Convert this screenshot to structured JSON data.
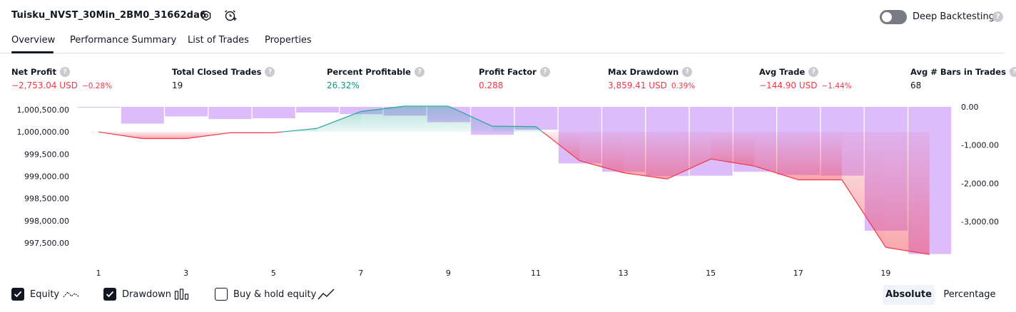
{
  "header": {
    "title": "Tuisku_NVST_30Min_2BM0_31662da6",
    "deep_backtesting_label": "Deep Backtesting",
    "deep_backtesting_on": false,
    "help_glyph": "?"
  },
  "tabs": [
    {
      "label": "Overview",
      "active": true
    },
    {
      "label": "Performance Summary",
      "active": false
    },
    {
      "label": "List of Trades",
      "active": false
    },
    {
      "label": "Properties",
      "active": false
    }
  ],
  "metrics": [
    {
      "label": "Net Profit",
      "value": "−2,753.04 USD",
      "sub": "−0.28%",
      "tone": "red"
    },
    {
      "label": "Total Closed Trades",
      "value": "19",
      "sub": "",
      "tone": "dark"
    },
    {
      "label": "Percent Profitable",
      "value": "26.32%",
      "sub": "",
      "tone": "green"
    },
    {
      "label": "Profit Factor",
      "value": "0.288",
      "sub": "",
      "tone": "red"
    },
    {
      "label": "Max Drawdown",
      "value": "3,859.41 USD",
      "sub": "0.39%",
      "tone": "red"
    },
    {
      "label": "Avg Trade",
      "value": "−144.90 USD",
      "sub": "−1.44%",
      "tone": "red"
    },
    {
      "label": "Avg # Bars in Trades",
      "value": "68",
      "sub": "",
      "tone": "dark"
    }
  ],
  "chart_data": {
    "type": "line",
    "x_ticks": [
      "1",
      "3",
      "5",
      "7",
      "9",
      "11",
      "13",
      "15",
      "17",
      "19"
    ],
    "left_axis": {
      "ticks": [
        "1,000,500.00",
        "1,000,000.00",
        "999,500.00",
        "999,000.00",
        "998,500.00",
        "998,000.00",
        "997,500.00"
      ],
      "ylim": [
        997250,
        1000600
      ]
    },
    "right_axis": {
      "ticks": [
        "0.00",
        "-1,000.00",
        "-2,000.00",
        "-3,000.00"
      ],
      "ylim": [
        -3850,
        0
      ]
    },
    "equity": {
      "x": [
        1,
        2,
        3,
        4,
        5,
        6,
        7,
        8,
        9,
        10,
        11,
        12,
        13,
        14,
        15,
        16,
        17,
        18,
        19,
        20
      ],
      "y": [
        1000000,
        999850,
        999850,
        999980,
        999980,
        1000080,
        1000460,
        1000580,
        1000580,
        1000130,
        1000120,
        999350,
        999080,
        998940,
        999390,
        999230,
        998920,
        998920,
        997400,
        997240
      ],
      "baseline": 1000000,
      "above_color": "#26a69a",
      "below_color": "#f23645"
    },
    "drawdown": {
      "x": [
        1,
        2,
        3,
        4,
        5,
        6,
        7,
        8,
        9,
        10,
        11,
        12,
        13,
        14,
        15,
        16,
        17,
        18,
        19,
        20
      ],
      "y": [
        0,
        -440,
        -250,
        -320,
        -300,
        -150,
        -190,
        -230,
        -400,
        -730,
        -600,
        -1480,
        -1700,
        -1810,
        -1800,
        -1700,
        -1780,
        -1800,
        -3240,
        -3850
      ],
      "color": "#d1a5fb"
    }
  },
  "legend": {
    "equity": {
      "label": "Equity",
      "checked": true
    },
    "drawdown": {
      "label": "Drawdown",
      "checked": true
    },
    "buy_hold": {
      "label": "Buy & hold equity",
      "checked": false
    }
  },
  "view_mode": {
    "absolute_label": "Absolute",
    "percentage_label": "Percentage",
    "selected": "Absolute"
  }
}
